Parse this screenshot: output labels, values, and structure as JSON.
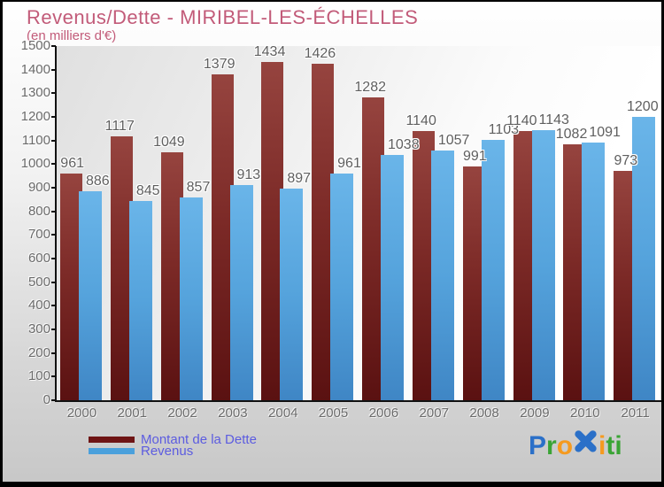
{
  "header": {
    "title": "Revenus/Dette - MIRIBEL-LES-ÉCHELLES",
    "subtitle": "(en milliers d'€)"
  },
  "chart_data": {
    "type": "bar",
    "title": "Revenus/Dette - MIRIBEL-LES-ÉCHELLES",
    "subtitle": "(en milliers d'€)",
    "categories": [
      "2000",
      "2001",
      "2002",
      "2003",
      "2004",
      "2005",
      "2006",
      "2007",
      "2008",
      "2009",
      "2010",
      "2011"
    ],
    "series": [
      {
        "name": "Montant de la Dette",
        "values": [
          961,
          1117,
          1049,
          1379,
          1434,
          1426,
          1282,
          1140,
          991,
          1140,
          1082,
          973
        ]
      },
      {
        "name": "Revenus",
        "values": [
          886,
          845,
          857,
          913,
          897,
          961,
          1038,
          1057,
          1103,
          1143,
          1091,
          1200
        ]
      }
    ],
    "ylim": [
      0,
      1500
    ],
    "ytick_step": 100,
    "grid": false,
    "legend_position": "bottom-left",
    "colors": {
      "dette_bar_top": "#96443f",
      "dette_bar_bottom": "#5a1111",
      "revenus_bar_top": "#6ab5e9",
      "revenus_bar_bottom": "#3f86c5"
    }
  },
  "legend": {
    "items": [
      {
        "label": "Montant de la Dette",
        "color": "#6e1414"
      },
      {
        "label": "Revenus",
        "color": "#4aa0dc"
      }
    ],
    "text_color": "#5c5ce0"
  },
  "logo": {
    "text": "Proxiti",
    "letters": [
      {
        "ch": "P",
        "color": "#2b70c8"
      },
      {
        "ch": "r",
        "color": "#3aa435"
      },
      {
        "ch": "o",
        "color": "#f59a1f"
      },
      {
        "ch": "x",
        "color": "#2b70c8",
        "icon": true
      },
      {
        "ch": "i",
        "color": "#f59a1f"
      },
      {
        "ch": "t",
        "color": "#3aa435"
      },
      {
        "ch": "i",
        "color": "#3aa435"
      }
    ]
  },
  "styles": {
    "title_color": "#c25b79",
    "axis_text_color": "#6a6a6a",
    "value_label_color": "#5f5f5f"
  }
}
